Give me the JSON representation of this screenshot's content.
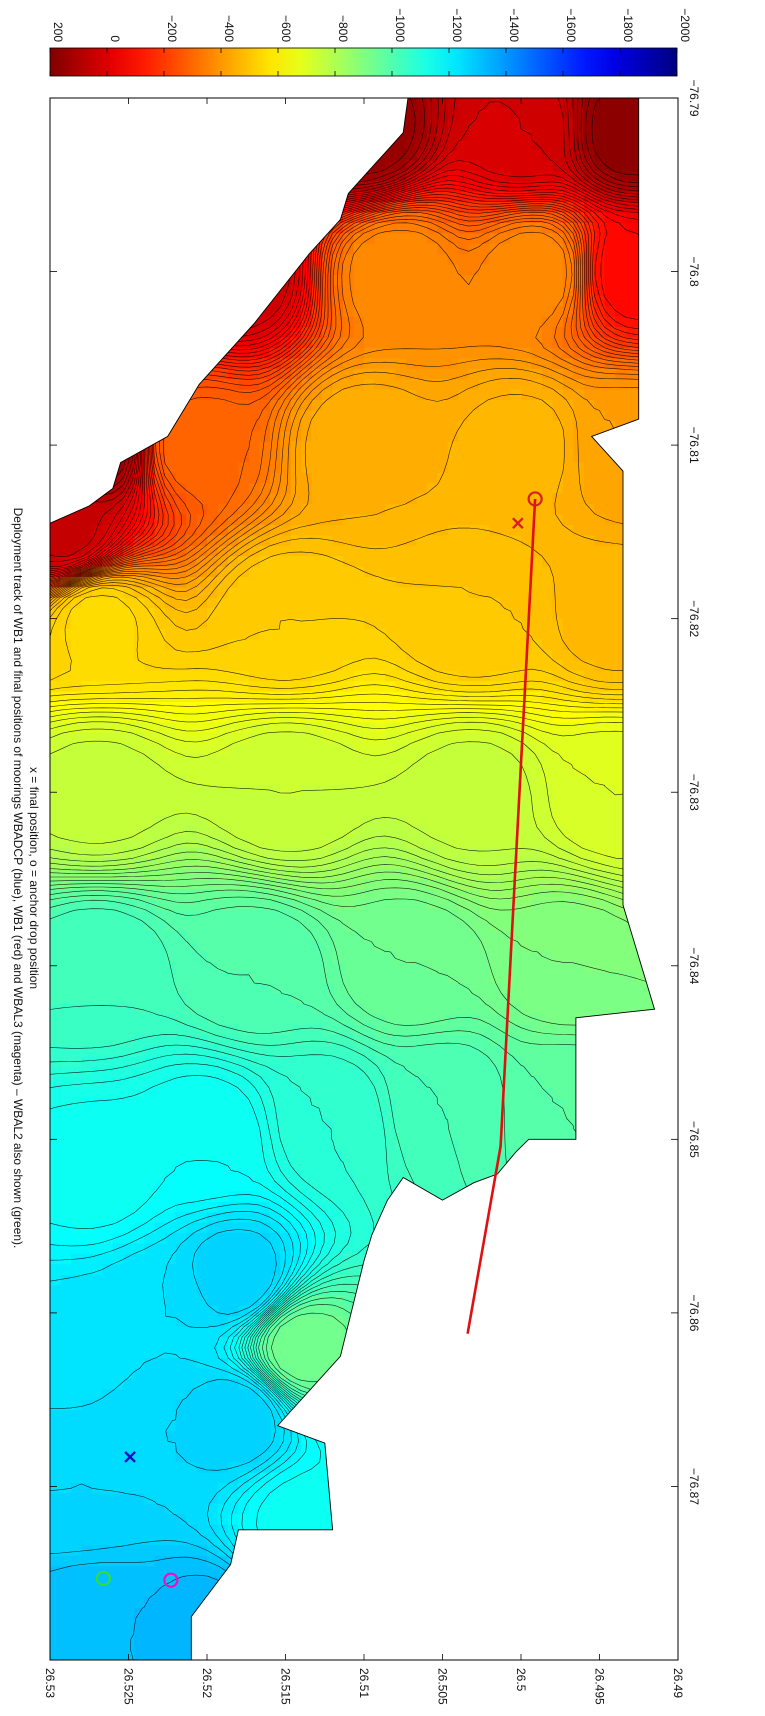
{
  "chart_data": {
    "type": "heatmap",
    "subtype": "filled-contour-map",
    "orientation": "rotated 90 degrees clockwise",
    "title_lines": [
      "Deployment track of WB1 and final positions of moorings WBADCP (blue), WB1 (red) and WBAL3 (magenta) – WBAL2 also shown (green).",
      "x = final position, o = anchor drop position"
    ],
    "x_axis": {
      "label": "",
      "range": [
        -76.88,
        -76.79
      ],
      "ticks": [
        -76.87,
        -76.86,
        -76.85,
        -76.84,
        -76.83,
        -76.82,
        -76.81,
        -76.8,
        -76.79
      ],
      "tick_labels": [
        "−76.87",
        "−76.86",
        "−76.85",
        "−76.84",
        "−76.83",
        "−76.82",
        "−76.81",
        "−76.8",
        "−76.79"
      ]
    },
    "y_axis": {
      "label": "",
      "range": [
        26.49,
        26.53
      ],
      "ticks": [
        26.49,
        26.495,
        26.5,
        26.505,
        26.51,
        26.515,
        26.52,
        26.525,
        26.53
      ],
      "tick_labels": [
        "26.49",
        "26.495",
        "26.5",
        "26.505",
        "26.51",
        "26.515",
        "26.52",
        "26.525",
        "26.53"
      ]
    },
    "colorbar": {
      "range": [
        -2000,
        200
      ],
      "ticks": [
        200,
        0,
        -200,
        -400,
        -600,
        -800,
        -1000,
        -1200,
        -1400,
        -1600,
        -1800,
        -2000
      ],
      "tick_labels": [
        "200",
        "0",
        "−200",
        "−400",
        "−600",
        "−800",
        "−1000",
        "−1200",
        "−1400",
        "−1600",
        "−1800",
        "−2000"
      ],
      "colormap": "jet"
    },
    "depth_field": {
      "description": "approximate bathymetry depth sampled on a coarse grid (m)",
      "contour_interval": 20,
      "anchors": [
        {
          "lon": -76.878,
          "lat": 26.527,
          "depth": -480
        },
        {
          "lon": -76.878,
          "lat": 26.52,
          "depth": -470
        },
        {
          "lon": -76.87,
          "lat": 26.528,
          "depth": -540
        },
        {
          "lon": -76.867,
          "lat": 26.523,
          "depth": -540
        },
        {
          "lon": -76.866,
          "lat": 26.518,
          "depth": -520
        },
        {
          "lon": -76.862,
          "lat": 26.528,
          "depth": -570
        },
        {
          "lon": -76.86,
          "lat": 26.523,
          "depth": -560
        },
        {
          "lon": -76.858,
          "lat": 26.518,
          "depth": -520
        },
        {
          "lon": -76.872,
          "lat": 26.514,
          "depth": -650
        },
        {
          "lon": -76.862,
          "lat": 26.514,
          "depth": -880
        },
        {
          "lon": -76.852,
          "lat": 26.527,
          "depth": -650
        },
        {
          "lon": -76.85,
          "lat": 26.52,
          "depth": -640
        },
        {
          "lon": -76.849,
          "lat": 26.512,
          "depth": -720
        },
        {
          "lon": -76.848,
          "lat": 26.505,
          "depth": -780
        },
        {
          "lon": -76.848,
          "lat": 26.497,
          "depth": -820
        },
        {
          "lon": -76.84,
          "lat": 26.527,
          "depth": -760
        },
        {
          "lon": -76.84,
          "lat": 26.517,
          "depth": -800
        },
        {
          "lon": -76.84,
          "lat": 26.507,
          "depth": -860
        },
        {
          "lon": -76.84,
          "lat": 26.497,
          "depth": -900
        },
        {
          "lon": -76.83,
          "lat": 26.527,
          "depth": -1050
        },
        {
          "lon": -76.83,
          "lat": 26.515,
          "depth": -1060
        },
        {
          "lon": -76.83,
          "lat": 26.503,
          "depth": -1050
        },
        {
          "lon": -76.83,
          "lat": 26.494,
          "depth": -1100
        },
        {
          "lon": -76.82,
          "lat": 26.527,
          "depth": -1250
        },
        {
          "lon": -76.82,
          "lat": 26.515,
          "depth": -1280
        },
        {
          "lon": -76.82,
          "lat": 26.503,
          "depth": -1300
        },
        {
          "lon": -76.82,
          "lat": 26.494,
          "depth": -1330
        },
        {
          "lon": -76.815,
          "lat": 26.529,
          "depth": -1850
        },
        {
          "lon": -76.81,
          "lat": 26.521,
          "depth": -1500
        },
        {
          "lon": -76.81,
          "lat": 26.51,
          "depth": -1340
        },
        {
          "lon": -76.81,
          "lat": 26.5,
          "depth": -1330
        },
        {
          "lon": -76.81,
          "lat": 26.493,
          "depth": -1380
        },
        {
          "lon": -76.81,
          "lat": 26.527,
          "depth": -1950
        },
        {
          "lon": -76.8,
          "lat": 26.518,
          "depth": -1850
        },
        {
          "lon": -76.8,
          "lat": 26.508,
          "depth": -1420
        },
        {
          "lon": -76.8,
          "lat": 26.499,
          "depth": -1420
        },
        {
          "lon": -76.8,
          "lat": 26.493,
          "depth": -1720
        },
        {
          "lon": -76.792,
          "lat": 26.51,
          "depth": -1960
        },
        {
          "lon": -76.792,
          "lat": 26.5,
          "depth": -1820
        },
        {
          "lon": -76.792,
          "lat": 26.493,
          "depth": -1980
        }
      ],
      "outline": [
        [
          -76.88,
          26.53
        ],
        [
          -76.8145,
          26.53
        ],
        [
          -76.8135,
          26.5275
        ],
        [
          -76.8125,
          26.526
        ],
        [
          -76.811,
          26.5255
        ],
        [
          -76.8095,
          26.5225
        ],
        [
          -76.8065,
          26.5205
        ],
        [
          -76.805,
          26.519
        ],
        [
          -76.803,
          26.517
        ],
        [
          -76.799,
          26.5135
        ],
        [
          -76.797,
          26.5115
        ],
        [
          -76.7955,
          26.511
        ],
        [
          -76.7935,
          26.509
        ],
        [
          -76.792,
          26.5075
        ],
        [
          -76.79,
          26.5072
        ],
        [
          -76.79,
          26.4925
        ],
        [
          -76.8,
          26.4925
        ],
        [
          -76.8085,
          26.4925
        ],
        [
          -76.8095,
          26.4955
        ],
        [
          -76.8115,
          26.4935
        ],
        [
          -76.8175,
          26.4935
        ],
        [
          -76.8365,
          26.4935
        ],
        [
          -76.8425,
          26.4915
        ],
        [
          -76.843,
          26.4965
        ],
        [
          -76.85,
          26.4965
        ],
        [
          -76.85,
          26.4995
        ],
        [
          -76.8507,
          26.5003
        ],
        [
          -76.852,
          26.5015
        ],
        [
          -76.8525,
          26.503
        ],
        [
          -76.8535,
          26.505
        ],
        [
          -76.8522,
          26.5075
        ],
        [
          -76.8535,
          26.5085
        ],
        [
          -76.8555,
          26.5095
        ],
        [
          -76.857,
          26.51
        ],
        [
          -76.8625,
          26.5115
        ],
        [
          -76.866,
          26.515
        ],
        [
          -76.8665,
          26.5155
        ],
        [
          -76.8675,
          26.5125
        ],
        [
          -76.8725,
          26.512
        ],
        [
          -76.8725,
          26.518
        ],
        [
          -76.8745,
          26.5185
        ],
        [
          -76.8775,
          26.521
        ],
        [
          -76.8795,
          26.521
        ],
        [
          -76.88,
          26.521
        ]
      ]
    },
    "series": [
      {
        "name": "WB1 deployment track",
        "type": "line",
        "color": "#e01010",
        "x": [
          -76.8612,
          -76.8504,
          -76.8131
        ],
        "y": [
          26.5034,
          26.5013,
          26.4991
        ]
      },
      {
        "name": "WB1",
        "type": "markers",
        "color": "#d82020",
        "points": [
          {
            "lon": -76.8131,
            "lat": 26.4991,
            "symbol": "o",
            "role": "anchor drop position"
          },
          {
            "lon": -76.8145,
            "lat": 26.5002,
            "symbol": "x",
            "role": "final position"
          }
        ]
      },
      {
        "name": "WBADCP",
        "type": "markers",
        "color": "#1010c8",
        "points": [
          {
            "lon": -76.8683,
            "lat": 26.5249,
            "symbol": "x",
            "role": "final position"
          }
        ]
      },
      {
        "name": "WBAL3",
        "type": "markers",
        "color": "#ee10c0",
        "points": [
          {
            "lon": -76.8754,
            "lat": 26.5223,
            "symbol": "o",
            "role": "anchor drop position"
          }
        ]
      },
      {
        "name": "WBAL2",
        "type": "markers",
        "color": "#30e030",
        "points": [
          {
            "lon": -76.8753,
            "lat": 26.5266,
            "symbol": "o",
            "role": "anchor drop position"
          }
        ]
      }
    ],
    "grid": false,
    "legend": "none"
  }
}
